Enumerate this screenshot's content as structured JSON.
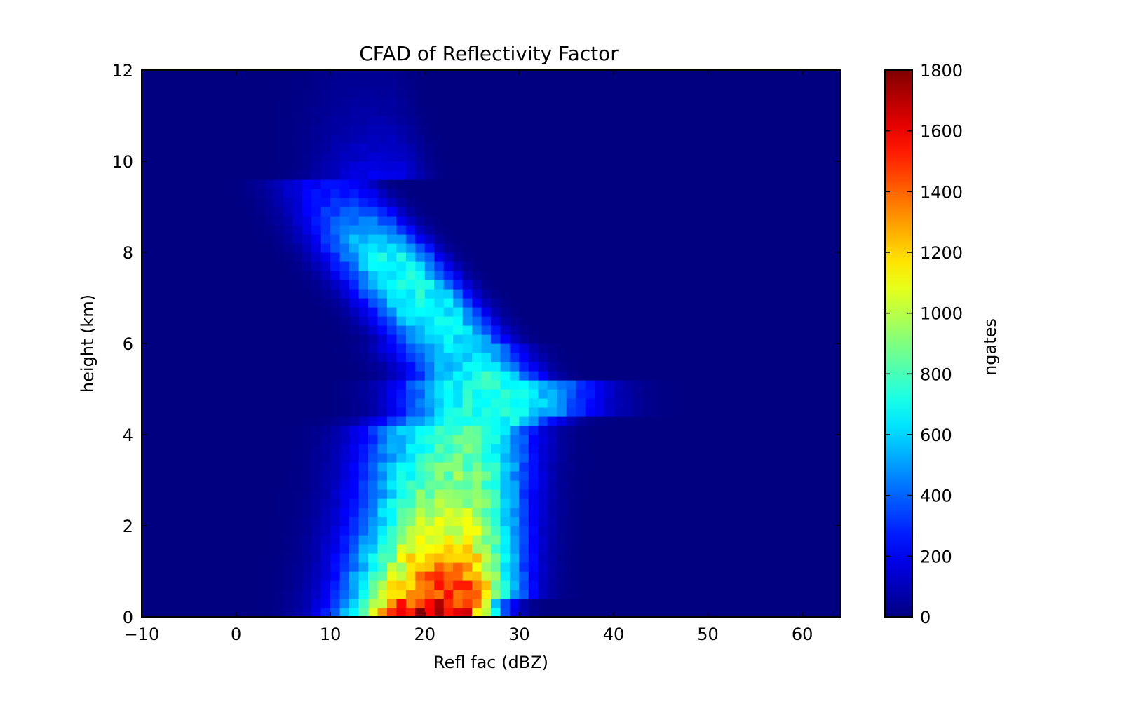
{
  "chart_data": {
    "type": "heatmap",
    "title": "CFAD of Reflectivity Factor",
    "xlabel": "Refl fac (dBZ)",
    "ylabel": "height (km)",
    "xlim": [
      -10,
      64
    ],
    "ylim": [
      0,
      12
    ],
    "x_ticks": [
      "−10",
      "0",
      "10",
      "20",
      "30",
      "40",
      "50",
      "60"
    ],
    "y_ticks": [
      "0",
      "2",
      "4",
      "6",
      "8",
      "10",
      "12"
    ],
    "colorbar": {
      "label": "ngates",
      "min": 0,
      "max": 1800,
      "ticks": [
        "0",
        "200",
        "400",
        "600",
        "800",
        "1000",
        "1200",
        "1400",
        "1600",
        "1800"
      ],
      "colormap": "jet"
    },
    "bin_width_dbz": 1,
    "bin_height_km": 0.2,
    "grid": false,
    "features": [
      {
        "feature": "low-level peak",
        "x_range_dbz": [
          22,
          28
        ],
        "y_range_km": [
          0,
          1
        ],
        "ngates_approx": 1750
      },
      {
        "feature": "upper plume",
        "x_range_dbz": [
          14,
          17
        ],
        "y_range_km": [
          6.5,
          8
        ],
        "ngates_approx": 700
      },
      {
        "feature": "melting-layer shelf",
        "x_range_dbz": [
          22,
          34
        ],
        "y_range_km": [
          4.5,
          5.3
        ],
        "ngates_approx": 650
      }
    ]
  }
}
